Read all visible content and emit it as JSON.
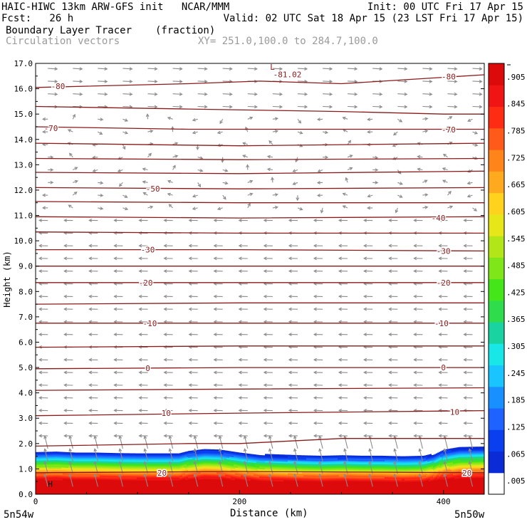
{
  "header": {
    "line1_left": "HAIC-HIWC 13km ARW-GFS init   NCAR/MMM",
    "line1_right": "Init: 00 UTC Fri 17 Apr 15",
    "line2_left": "Fcst:   26 h",
    "line2_right": "Valid: 02 UTC Sat 18 Apr 15 (23 LST Fri 17 Apr 15)",
    "line3_left": "Boundary Layer Tracer",
    "line3_units": "(fraction)",
    "line4_left": "Circulation vectors",
    "line4_xy": "XY= 251.0,100.0 to 284.7,100.0"
  },
  "chart_data": {
    "type": "heatmap",
    "xlabel": "Distance (km)",
    "ylabel": "Height (km)",
    "xlim": [
      0,
      440
    ],
    "ylim": [
      0,
      17
    ],
    "x_ticks": [
      "0",
      "200",
      "400"
    ],
    "x_tick_values": [
      0,
      200,
      400
    ],
    "x_end_labels": [
      "5n54w",
      "5n50w"
    ],
    "y_ticks": [
      "0.0",
      "1.0",
      "2.0",
      "3.0",
      "4.0",
      "5.0",
      "6.0",
      "7.0",
      "8.0",
      "9.0",
      "10.0",
      "11.0",
      "12.0",
      "13.0",
      "14.0",
      "15.0",
      "16.0",
      "17.0"
    ],
    "tracer_top_km": [
      [
        0,
        2.0
      ],
      [
        20,
        2.02
      ],
      [
        40,
        1.98
      ],
      [
        60,
        1.98
      ],
      [
        80,
        1.96
      ],
      [
        100,
        1.95
      ],
      [
        120,
        1.95
      ],
      [
        140,
        1.95
      ],
      [
        150,
        2.05
      ],
      [
        165,
        2.12
      ],
      [
        180,
        2.1
      ],
      [
        200,
        1.98
      ],
      [
        220,
        1.88
      ],
      [
        240,
        1.85
      ],
      [
        260,
        1.82
      ],
      [
        280,
        1.8
      ],
      [
        300,
        1.82
      ],
      [
        320,
        1.8
      ],
      [
        340,
        1.8
      ],
      [
        360,
        1.78
      ],
      [
        380,
        1.8
      ],
      [
        390,
        1.9
      ],
      [
        400,
        2.1
      ],
      [
        415,
        2.2
      ],
      [
        440,
        2.22
      ]
    ],
    "tracer_profile": [
      {
        "z_frac": 0.0,
        "value": 1.0
      },
      {
        "z_frac": 0.3,
        "value": 0.95
      },
      {
        "z_frac": 0.45,
        "value": 0.75
      },
      {
        "z_frac": 0.55,
        "value": 0.55
      },
      {
        "z_frac": 0.65,
        "value": 0.4
      },
      {
        "z_frac": 0.75,
        "value": 0.2
      },
      {
        "z_frac": 0.85,
        "value": 0.05
      },
      {
        "z_frac": 1.0,
        "value": 0.03
      }
    ],
    "temperature_contours": [
      {
        "label": "-80",
        "points": [
          [
            0,
            16.05
          ],
          [
            150,
            16.2
          ],
          [
            220,
            16.3
          ],
          [
            300,
            16.2
          ],
          [
            380,
            16.4
          ],
          [
            440,
            16.55
          ]
        ],
        "labels_at": [
          [
            22,
            16.1
          ],
          [
            405,
            16.48
          ]
        ]
      },
      {
        "label": "",
        "points": [
          [
            0,
            15.3
          ],
          [
            150,
            15.2
          ],
          [
            300,
            15.1
          ],
          [
            400,
            15.0
          ],
          [
            440,
            15.0
          ]
        ],
        "labels_at": []
      },
      {
        "label": "-70",
        "points": [
          [
            0,
            14.5
          ],
          [
            150,
            14.4
          ],
          [
            300,
            14.4
          ],
          [
            440,
            14.4
          ]
        ],
        "labels_at": [
          [
            15,
            14.45
          ],
          [
            405,
            14.38
          ]
        ]
      },
      {
        "label": "",
        "points": [
          [
            0,
            13.85
          ],
          [
            200,
            13.75
          ],
          [
            440,
            13.85
          ]
        ],
        "labels_at": []
      },
      {
        "label": "",
        "points": [
          [
            0,
            13.25
          ],
          [
            200,
            13.2
          ],
          [
            440,
            13.25
          ]
        ],
        "labels_at": []
      },
      {
        "label": "",
        "points": [
          [
            0,
            12.7
          ],
          [
            200,
            12.65
          ],
          [
            440,
            12.75
          ]
        ],
        "labels_at": []
      },
      {
        "label": "-50",
        "points": [
          [
            0,
            12.1
          ],
          [
            200,
            12.05
          ],
          [
            440,
            12.1
          ]
        ],
        "labels_at": [
          [
            115,
            12.05
          ]
        ]
      },
      {
        "label": "",
        "points": [
          [
            0,
            11.55
          ],
          [
            200,
            11.5
          ],
          [
            440,
            11.5
          ]
        ],
        "labels_at": []
      },
      {
        "label": "-40",
        "points": [
          [
            0,
            10.95
          ],
          [
            200,
            10.9
          ],
          [
            440,
            10.95
          ]
        ],
        "labels_at": [
          [
            395,
            10.9
          ]
        ]
      },
      {
        "label": "",
        "points": [
          [
            0,
            10.35
          ],
          [
            200,
            10.3
          ],
          [
            440,
            10.3
          ]
        ],
        "labels_at": []
      },
      {
        "label": "-30",
        "points": [
          [
            0,
            9.65
          ],
          [
            200,
            9.65
          ],
          [
            440,
            9.6
          ]
        ],
        "labels_at": [
          [
            110,
            9.65
          ],
          [
            400,
            9.6
          ]
        ]
      },
      {
        "label": "",
        "points": [
          [
            0,
            9.0
          ],
          [
            200,
            9.0
          ],
          [
            440,
            9.0
          ]
        ],
        "labels_at": []
      },
      {
        "label": "-20",
        "points": [
          [
            0,
            8.35
          ],
          [
            200,
            8.35
          ],
          [
            440,
            8.35
          ]
        ],
        "labels_at": [
          [
            108,
            8.35
          ],
          [
            400,
            8.35
          ]
        ]
      },
      {
        "label": "",
        "points": [
          [
            0,
            7.5
          ],
          [
            200,
            7.55
          ],
          [
            440,
            7.55
          ]
        ],
        "labels_at": []
      },
      {
        "label": "-10",
        "points": [
          [
            0,
            6.75
          ],
          [
            200,
            6.75
          ],
          [
            440,
            6.75
          ]
        ],
        "labels_at": [
          [
            112,
            6.75
          ],
          [
            398,
            6.75
          ]
        ]
      },
      {
        "label": "",
        "points": [
          [
            0,
            5.8
          ],
          [
            200,
            5.85
          ],
          [
            440,
            5.85
          ]
        ],
        "labels_at": []
      },
      {
        "label": "0",
        "points": [
          [
            0,
            4.95
          ],
          [
            200,
            5.0
          ],
          [
            440,
            5.0
          ]
        ],
        "labels_at": [
          [
            110,
            4.97
          ],
          [
            400,
            5.0
          ]
        ]
      },
      {
        "label": "",
        "points": [
          [
            0,
            4.1
          ],
          [
            200,
            4.15
          ],
          [
            440,
            4.2
          ]
        ],
        "labels_at": []
      },
      {
        "label": "10",
        "points": [
          [
            0,
            3.1
          ],
          [
            200,
            3.2
          ],
          [
            440,
            3.3
          ]
        ],
        "labels_at": [
          [
            128,
            3.2
          ],
          [
            411,
            3.25
          ]
        ]
      },
      {
        "label": "",
        "points": [
          [
            0,
            1.9
          ],
          [
            150,
            2.0
          ],
          [
            200,
            2.0
          ],
          [
            300,
            2.2
          ],
          [
            440,
            2.2
          ]
        ],
        "labels_at": []
      },
      {
        "label": "20",
        "points": [
          [
            0,
            0.85
          ],
          [
            200,
            0.9
          ],
          [
            440,
            0.85
          ]
        ],
        "labels_at": [
          [
            124,
            0.85
          ],
          [
            423,
            0.85
          ]
        ]
      }
    ],
    "annotations": [
      {
        "text": "L",
        "x": 230,
        "y": 16.75
      },
      {
        "text": "-81.02",
        "x": 233,
        "y": 16.45
      },
      {
        "text": "H",
        "x": 12,
        "y": 0.3
      }
    ],
    "colorbar": {
      "labels": [
        ".005",
        ".065",
        ".125",
        ".185",
        ".245",
        ".305",
        ".365",
        ".425",
        ".485",
        ".545",
        ".605",
        ".665",
        ".725",
        ".785",
        ".845",
        ".905"
      ],
      "colors": [
        "#ffffff",
        "#0a2bd6",
        "#0a3ff0",
        "#1e62ff",
        "#1990ff",
        "#19c4ff",
        "#19e6e6",
        "#19d4a0",
        "#2fdc4b",
        "#45e619",
        "#7ee619",
        "#b3e619",
        "#e6e619",
        "#ffd21e",
        "#ffaa1e",
        "#ff8419",
        "#ff5a19",
        "#ff2c14",
        "#f01414",
        "#dc0a0a"
      ]
    },
    "colors": {
      "contour": "#8b1a1a",
      "vector": "#8c8c8c"
    }
  }
}
